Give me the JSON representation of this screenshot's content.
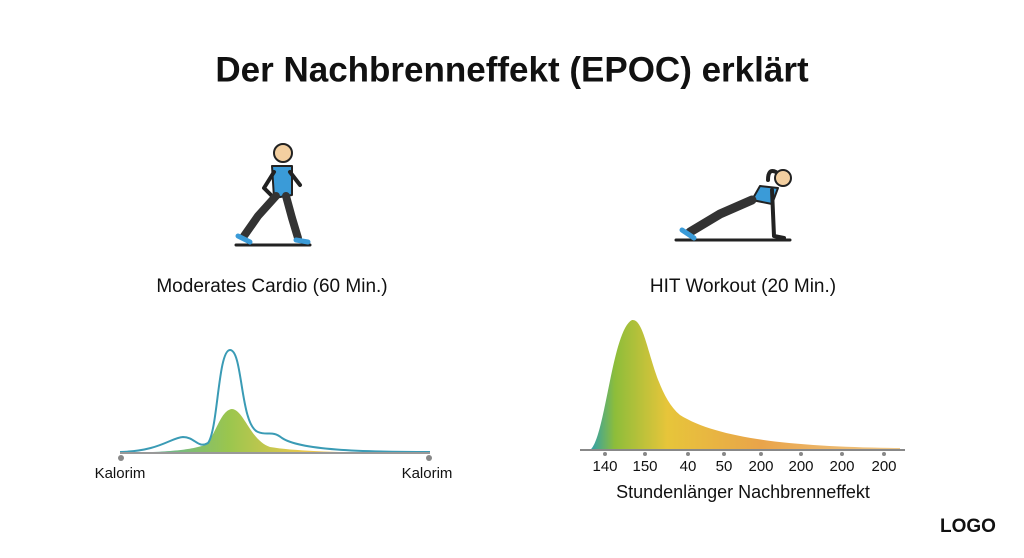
{
  "title": "Der Nachbrenneffekt (EPOC) erklärt",
  "left_panel": {
    "label": "Moderates Cardio (60 Min.)",
    "axis_labels": [
      "Kalorim",
      "Kalorim"
    ]
  },
  "right_panel": {
    "label": "HIT Workout (20 Min.)",
    "tick_labels": [
      "140",
      "150",
      "40",
      "50",
      "200",
      "200",
      "200",
      "200"
    ],
    "caption": "Stundenlänger Nachbrenneffekt"
  },
  "logo": "LOGO"
}
